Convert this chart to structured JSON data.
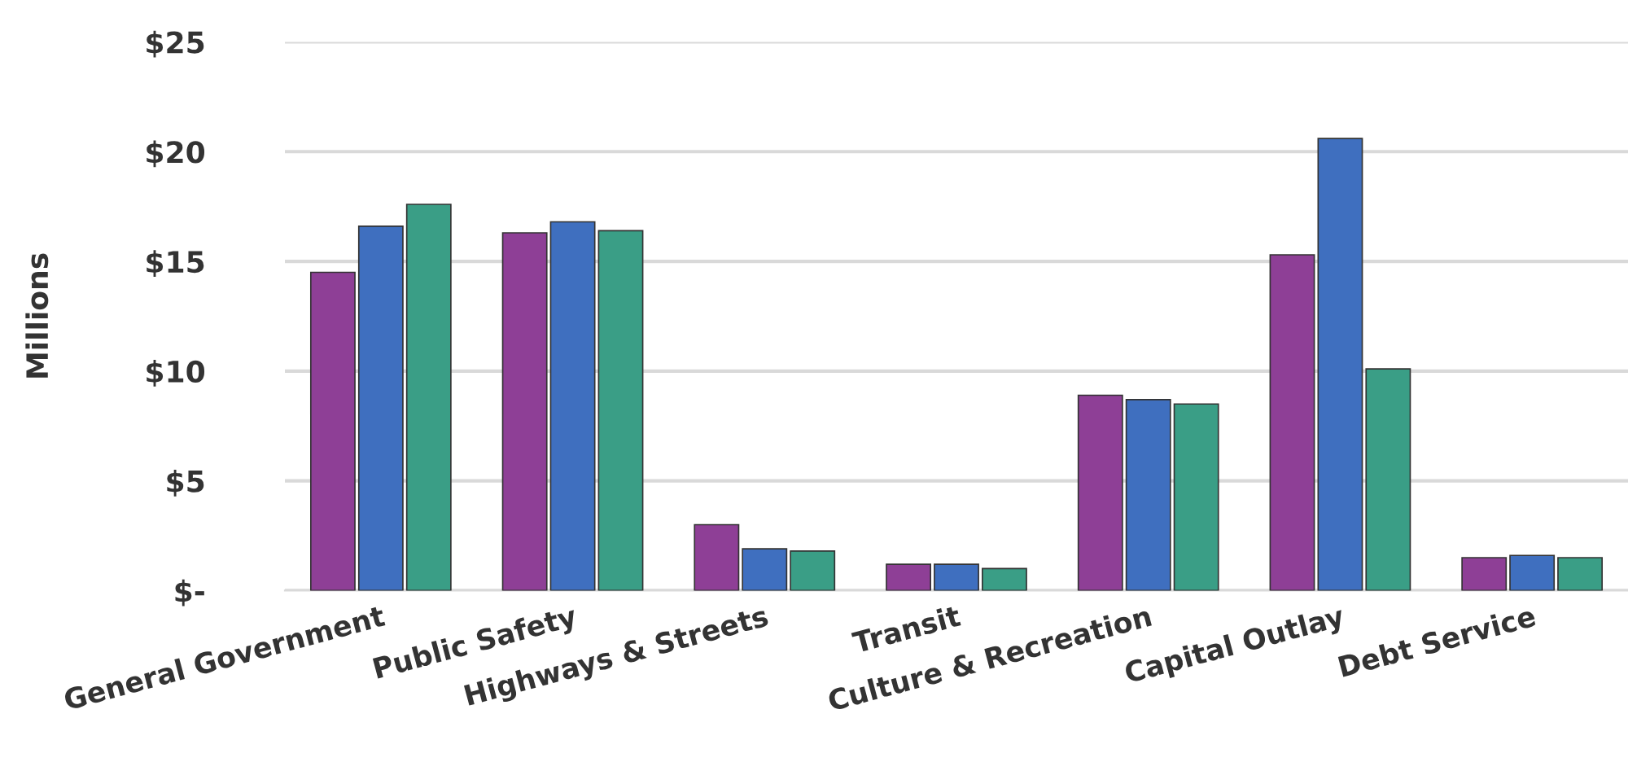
{
  "chart_data": {
    "type": "bar",
    "ylabel": "Millions",
    "categories": [
      "General Government",
      "Public Safety",
      "Highways & Streets",
      "Transit",
      "Culture & Recreation",
      "Capital Outlay",
      "Debt Service"
    ],
    "series": [
      {
        "color": "#8e3f96",
        "values": [
          14.5,
          16.3,
          3.0,
          1.2,
          8.9,
          15.3,
          1.5
        ]
      },
      {
        "color": "#3f6fbf",
        "values": [
          16.6,
          16.8,
          1.9,
          1.2,
          8.7,
          20.6,
          1.6
        ]
      },
      {
        "color": "#3a9e86",
        "values": [
          17.6,
          16.4,
          1.8,
          1.0,
          8.5,
          10.1,
          1.5
        ]
      }
    ],
    "ylim": [
      0,
      25
    ],
    "yticks": [
      {
        "value": 0,
        "label": "$-"
      },
      {
        "value": 5,
        "label": "$5"
      },
      {
        "value": 10,
        "label": "$10"
      },
      {
        "value": 15,
        "label": "$15"
      },
      {
        "value": 20,
        "label": "$20"
      },
      {
        "value": 25,
        "label": "$25"
      }
    ],
    "grid": "y"
  }
}
